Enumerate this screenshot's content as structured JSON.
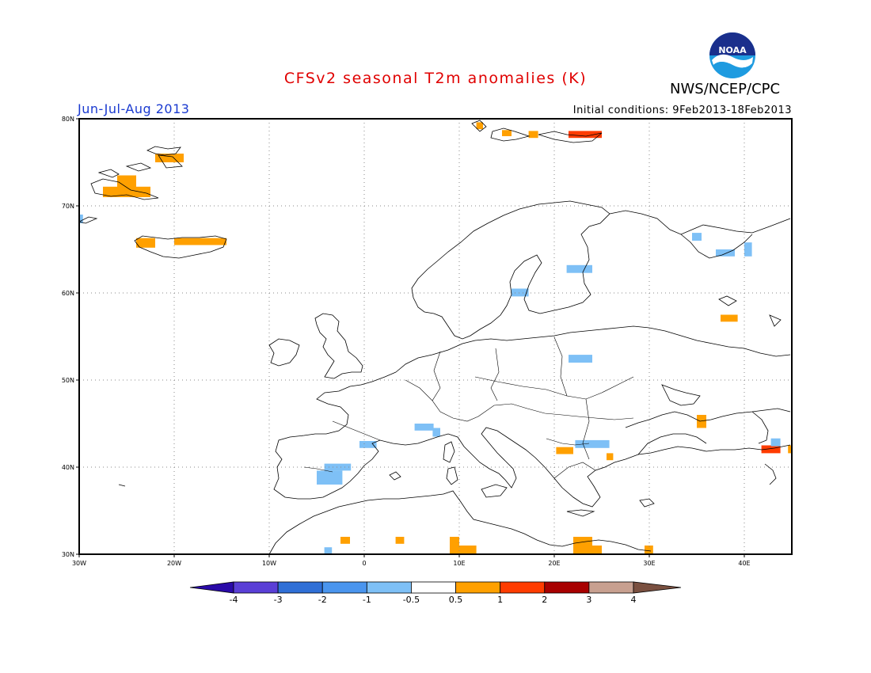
{
  "header": {
    "title": "CFSv2 seasonal T2m anomalies (K)",
    "agency": "NWS/NCEP/CPC",
    "logo_text": "NOAA",
    "period": "Jun-Jul-Aug 2013",
    "initial_conditions": "Initial conditions: 9Feb2013-18Feb2013"
  },
  "map": {
    "lon_range": [
      -30,
      45
    ],
    "lat_range": [
      30,
      80
    ],
    "lon_ticks": [
      {
        "v": -30,
        "label": "30W"
      },
      {
        "v": -20,
        "label": "20W"
      },
      {
        "v": -10,
        "label": "10W"
      },
      {
        "v": 0,
        "label": "0"
      },
      {
        "v": 10,
        "label": "10E"
      },
      {
        "v": 20,
        "label": "20E"
      },
      {
        "v": 30,
        "label": "30E"
      },
      {
        "v": 40,
        "label": "40E"
      }
    ],
    "lat_ticks": [
      {
        "v": 30,
        "label": "30N"
      },
      {
        "v": 40,
        "label": "40N"
      },
      {
        "v": 50,
        "label": "50N"
      },
      {
        "v": 60,
        "label": "60N"
      },
      {
        "v": 70,
        "label": "70N"
      },
      {
        "v": 80,
        "label": "80N"
      }
    ],
    "grid": true,
    "anomaly_cells": [
      {
        "lon": [
          -22.0,
          -19.0
        ],
        "lat": [
          75.0,
          76.0
        ],
        "cat": 1
      },
      {
        "lon": [
          -26.0,
          -24.0
        ],
        "lat": [
          72.0,
          73.5
        ],
        "cat": 1
      },
      {
        "lon": [
          -27.5,
          -22.5
        ],
        "lat": [
          71.0,
          72.2
        ],
        "cat": 1
      },
      {
        "lon": [
          -24.0,
          -22.0
        ],
        "lat": [
          65.2,
          66.3
        ],
        "cat": 1
      },
      {
        "lon": [
          -20.0,
          -14.5
        ],
        "lat": [
          65.5,
          66.3
        ],
        "cat": 1
      },
      {
        "lon": [
          -30.0,
          -29.6
        ],
        "lat": [
          68.0,
          69.0
        ],
        "cat": -1
      },
      {
        "lon": [
          11.8,
          12.5
        ],
        "lat": [
          78.8,
          79.6
        ],
        "cat": 1
      },
      {
        "lon": [
          14.5,
          15.5
        ],
        "lat": [
          78.0,
          78.7
        ],
        "cat": 1
      },
      {
        "lon": [
          17.3,
          18.3
        ],
        "lat": [
          77.8,
          78.6
        ],
        "cat": 1
      },
      {
        "lon": [
          21.5,
          25.0
        ],
        "lat": [
          77.8,
          78.6
        ],
        "cat": 2
      },
      {
        "lon": [
          34.5,
          35.5
        ],
        "lat": [
          66.0,
          66.9
        ],
        "cat": -1
      },
      {
        "lon": [
          37.0,
          39.0
        ],
        "lat": [
          64.2,
          65.0
        ],
        "cat": -1
      },
      {
        "lon": [
          40.0,
          40.8
        ],
        "lat": [
          64.2,
          65.8
        ],
        "cat": -1
      },
      {
        "lon": [
          21.3,
          24.0
        ],
        "lat": [
          62.3,
          63.2
        ],
        "cat": -1
      },
      {
        "lon": [
          15.5,
          17.3
        ],
        "lat": [
          59.6,
          60.5
        ],
        "cat": -1
      },
      {
        "lon": [
          37.5,
          39.3
        ],
        "lat": [
          56.7,
          57.5
        ],
        "cat": 1
      },
      {
        "lon": [
          21.5,
          24.0
        ],
        "lat": [
          52.0,
          52.9
        ],
        "cat": -1
      },
      {
        "lon": [
          35.0,
          36.0
        ],
        "lat": [
          44.5,
          46.0
        ],
        "cat": 1
      },
      {
        "lon": [
          -0.5,
          1.3
        ],
        "lat": [
          42.2,
          43.0
        ],
        "cat": -1
      },
      {
        "lon": [
          5.3,
          7.3
        ],
        "lat": [
          44.2,
          45.0
        ],
        "cat": -1
      },
      {
        "lon": [
          7.2,
          8.0
        ],
        "lat": [
          43.5,
          44.5
        ],
        "cat": -1
      },
      {
        "lon": [
          22.2,
          25.8
        ],
        "lat": [
          42.2,
          43.1
        ],
        "cat": -1
      },
      {
        "lon": [
          20.2,
          22.0
        ],
        "lat": [
          41.5,
          42.3
        ],
        "cat": 1
      },
      {
        "lon": [
          25.5,
          26.2
        ],
        "lat": [
          40.8,
          41.6
        ],
        "cat": 1
      },
      {
        "lon": [
          41.8,
          43.8
        ],
        "lat": [
          41.6,
          42.5
        ],
        "cat": 2
      },
      {
        "lon": [
          42.8,
          43.8
        ],
        "lat": [
          42.4,
          43.3
        ],
        "cat": -1
      },
      {
        "lon": [
          44.6,
          45.0
        ],
        "lat": [
          41.6,
          42.5
        ],
        "cat": 1
      },
      {
        "lon": [
          -4.2,
          -1.4
        ],
        "lat": [
          39.6,
          40.4
        ],
        "cat": -1
      },
      {
        "lon": [
          -5.0,
          -2.3
        ],
        "lat": [
          38.0,
          39.6
        ],
        "cat": -1
      },
      {
        "lon": [
          -2.5,
          -1.5
        ],
        "lat": [
          31.2,
          32.0
        ],
        "cat": 1
      },
      {
        "lon": [
          3.3,
          4.2
        ],
        "lat": [
          31.2,
          32.0
        ],
        "cat": 1
      },
      {
        "lon": [
          -4.2,
          -3.4
        ],
        "lat": [
          30.0,
          30.8
        ],
        "cat": -1
      },
      {
        "lon": [
          9.0,
          10.0
        ],
        "lat": [
          30.0,
          32.0
        ],
        "cat": 1
      },
      {
        "lon": [
          9.8,
          11.8
        ],
        "lat": [
          30.0,
          31.0
        ],
        "cat": 1
      },
      {
        "lon": [
          22.0,
          24.0
        ],
        "lat": [
          30.0,
          32.0
        ],
        "cat": 1
      },
      {
        "lon": [
          24.0,
          25.0
        ],
        "lat": [
          30.0,
          31.0
        ],
        "cat": 1
      },
      {
        "lon": [
          29.5,
          30.4
        ],
        "lat": [
          30.0,
          31.0
        ],
        "cat": 1
      }
    ]
  },
  "colorbar": {
    "tick_labels": [
      "-4",
      "-3",
      "-2",
      "-1",
      "-0.5",
      "0.5",
      "1",
      "2",
      "3",
      "4"
    ],
    "colors": [
      "#2a0aa8",
      "#5a3fd6",
      "#2f6fd6",
      "#4a95ee",
      "#7ec0f6",
      "#ffffff",
      "#ffa000",
      "#ff3c00",
      "#a80000",
      "#c8a090",
      "#7a5040"
    ]
  }
}
